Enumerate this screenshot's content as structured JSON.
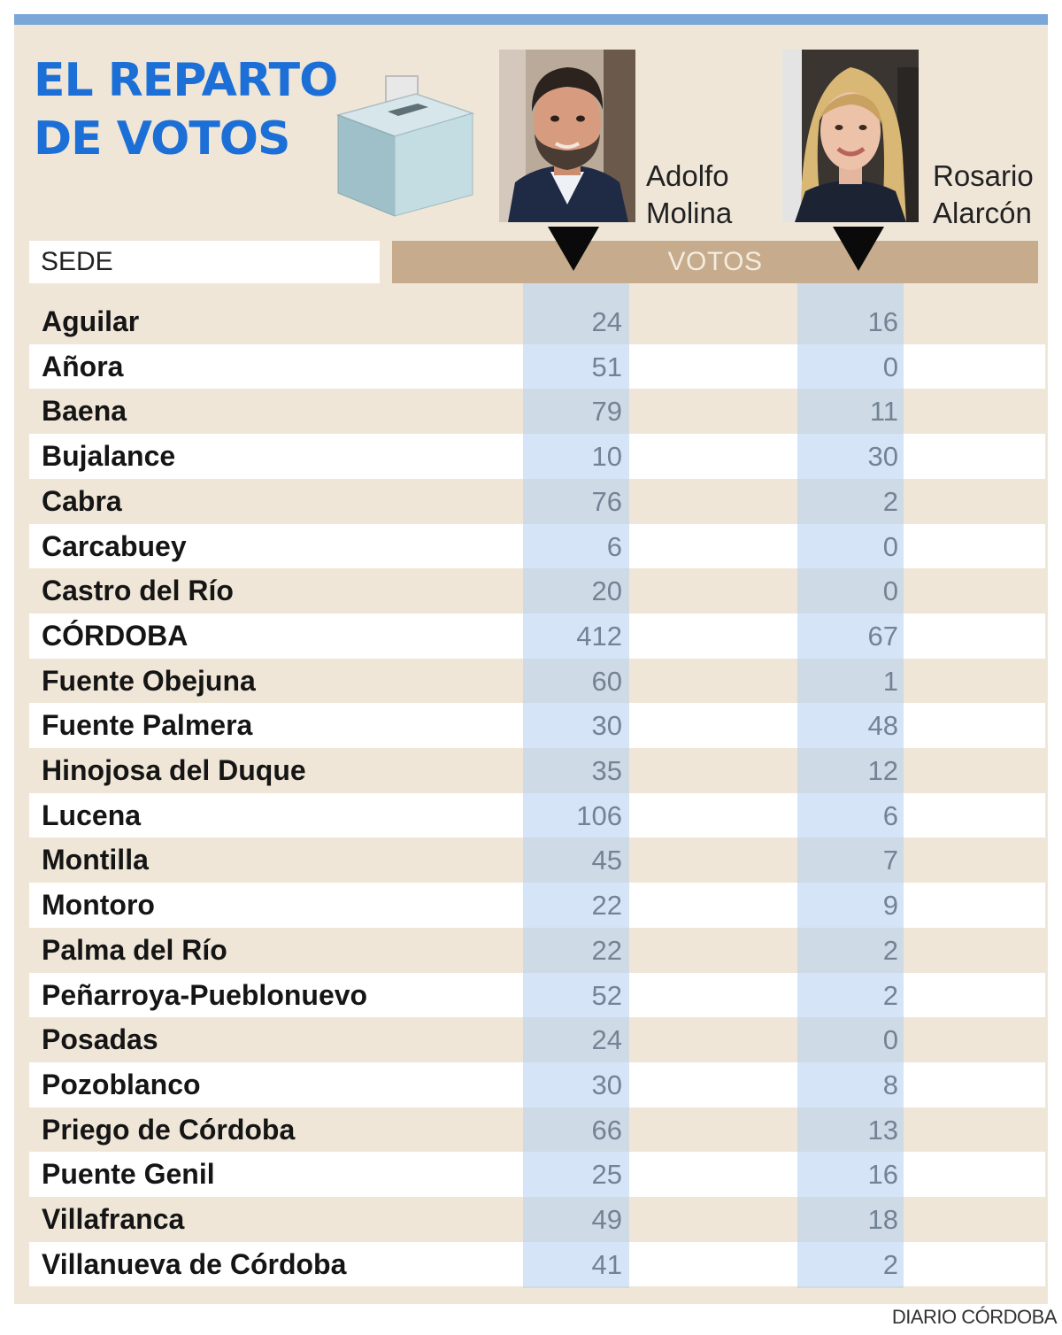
{
  "title": {
    "line1": "EL REPARTO",
    "line2": "DE VOTOS"
  },
  "candidates": [
    {
      "first": "Adolfo",
      "last": "Molina",
      "photo": "man-portrait-icon"
    },
    {
      "first": "Rosario",
      "last": "Alarcón",
      "photo": "woman-portrait-icon"
    }
  ],
  "header": {
    "sede": "SEDE",
    "votos": "VOTOS"
  },
  "credit": "DIARIO CÓRDOBA",
  "colors": {
    "title": "#1c6fd6",
    "panel": "#efe6d8",
    "votos_bar": "#c6ab8c",
    "column_band": "#b2d0f0",
    "top_rule": "#7aa6d8"
  },
  "chart_data": {
    "type": "table",
    "title": "EL REPARTO DE VOTOS",
    "columns": [
      "SEDE",
      "Adolfo Molina",
      "Rosario Alarcón"
    ],
    "rows": [
      {
        "sede": "Aguilar",
        "molina": 24,
        "alarcon": 16
      },
      {
        "sede": "Añora",
        "molina": 51,
        "alarcon": 0
      },
      {
        "sede": "Baena",
        "molina": 79,
        "alarcon": 11
      },
      {
        "sede": "Bujalance",
        "molina": 10,
        "alarcon": 30
      },
      {
        "sede": "Cabra",
        "molina": 76,
        "alarcon": 2
      },
      {
        "sede": "Carcabuey",
        "molina": 6,
        "alarcon": 0
      },
      {
        "sede": "Castro del Río",
        "molina": 20,
        "alarcon": 0
      },
      {
        "sede": "CÓRDOBA",
        "molina": 412,
        "alarcon": 67
      },
      {
        "sede": "Fuente Obejuna",
        "molina": 60,
        "alarcon": 1
      },
      {
        "sede": "Fuente Palmera",
        "molina": 30,
        "alarcon": 48
      },
      {
        "sede": "Hinojosa del Duque",
        "molina": 35,
        "alarcon": 12
      },
      {
        "sede": "Lucena",
        "molina": 106,
        "alarcon": 6
      },
      {
        "sede": "Montilla",
        "molina": 45,
        "alarcon": 7
      },
      {
        "sede": "Montoro",
        "molina": 22,
        "alarcon": 9
      },
      {
        "sede": "Palma del Río",
        "molina": 22,
        "alarcon": 2
      },
      {
        "sede": "Peñarroya-Pueblonuevo",
        "molina": 52,
        "alarcon": 2
      },
      {
        "sede": "Posadas",
        "molina": 24,
        "alarcon": 0
      },
      {
        "sede": "Pozoblanco",
        "molina": 30,
        "alarcon": 8
      },
      {
        "sede": "Priego de Córdoba",
        "molina": 66,
        "alarcon": 13
      },
      {
        "sede": "Puente Genil",
        "molina": 25,
        "alarcon": 16
      },
      {
        "sede": "Villafranca",
        "molina": 49,
        "alarcon": 18
      },
      {
        "sede": "Villanueva de Córdoba",
        "molina": 41,
        "alarcon": 2
      }
    ]
  }
}
